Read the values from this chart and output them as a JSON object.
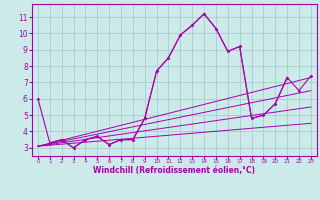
{
  "xlabel": "Windchill (Refroidissement éolien,°C)",
  "background_color": "#cceaea",
  "line_color": "#aa00aa",
  "grid_color": "#aacccc",
  "xlim": [
    -0.5,
    23.5
  ],
  "ylim": [
    2.5,
    11.8
  ],
  "xticks": [
    0,
    1,
    2,
    3,
    4,
    5,
    6,
    7,
    8,
    9,
    10,
    11,
    12,
    13,
    14,
    15,
    16,
    17,
    18,
    19,
    20,
    21,
    22,
    23
  ],
  "yticks": [
    3,
    4,
    5,
    6,
    7,
    8,
    9,
    10,
    11
  ],
  "curve1_x": [
    0,
    1,
    2,
    3,
    4,
    5,
    6,
    7,
    8,
    9,
    10,
    11,
    12,
    13,
    14,
    15,
    16,
    17,
    18,
    19,
    20,
    21
  ],
  "curve1_y": [
    6.0,
    3.3,
    3.5,
    3.0,
    3.5,
    3.7,
    3.2,
    3.5,
    3.5,
    4.8,
    7.7,
    8.5,
    9.9,
    10.5,
    11.2,
    10.3,
    8.9,
    9.2,
    4.8,
    5.0,
    5.7,
    7.3
  ],
  "curve2_x": [
    1,
    2,
    3,
    4,
    5,
    6,
    7,
    8,
    9,
    10,
    11,
    12,
    13,
    14,
    15,
    16,
    17,
    18,
    19,
    20,
    21,
    22,
    23
  ],
  "curve2_y": [
    3.3,
    3.5,
    3.0,
    3.5,
    3.7,
    3.2,
    3.5,
    3.5,
    4.8,
    7.7,
    8.5,
    9.9,
    10.5,
    11.2,
    10.3,
    8.9,
    9.2,
    4.8,
    5.0,
    5.7,
    7.3,
    6.5,
    7.4
  ],
  "linear_lines": [
    {
      "x0": 0,
      "x1": 23,
      "y0": 3.1,
      "y1": 7.3
    },
    {
      "x0": 0,
      "x1": 23,
      "y0": 3.1,
      "y1": 6.5
    },
    {
      "x0": 0,
      "x1": 23,
      "y0": 3.1,
      "y1": 5.5
    },
    {
      "x0": 0,
      "x1": 23,
      "y0": 3.1,
      "y1": 4.5
    }
  ]
}
